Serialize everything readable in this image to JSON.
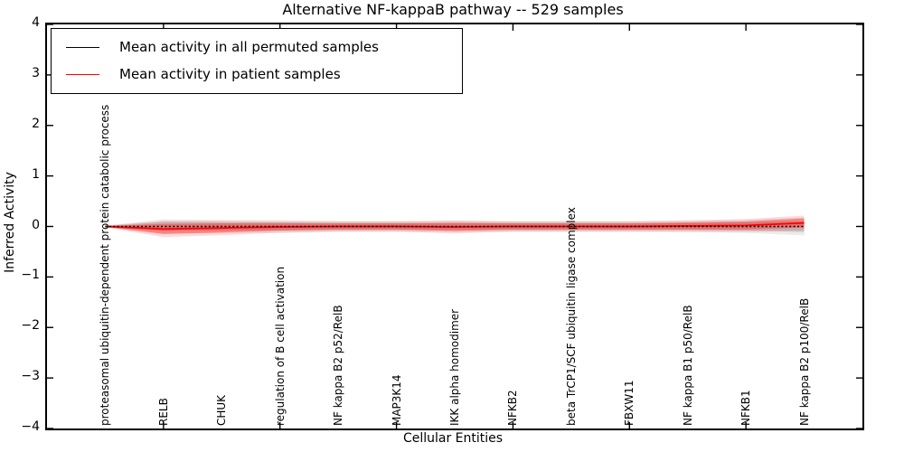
{
  "chart": {
    "title": "Alternative NF-kappaB pathway -- 529 samples",
    "xlabel": "Cellular Entities",
    "ylabel": "Inferred Activity"
  },
  "chart_data": {
    "type": "line",
    "title": "Alternative NF-kappaB pathway -- 529 samples",
    "xlabel": "Cellular Entities",
    "ylabel": "Inferred Activity",
    "ylim": [
      -4,
      4
    ],
    "xlim": [
      0,
      14
    ],
    "grid": false,
    "legend_position": "upper left",
    "yticks": [
      "4",
      "3",
      "2",
      "1",
      "0",
      "−1",
      "−2",
      "−3",
      "−4"
    ],
    "ytick_values": [
      4,
      3,
      2,
      1,
      0,
      -1,
      -2,
      -3,
      -4
    ],
    "xtick_values": [
      2,
      4,
      6,
      8,
      10,
      12
    ],
    "x": [
      1,
      2,
      3,
      4,
      5,
      6,
      7,
      8,
      9,
      10,
      11,
      12,
      13
    ],
    "categories": [
      "proteasomal ubiquitin-dependent protein catabolic process",
      "RELB",
      "CHUK",
      "regulation of B cell activation",
      "NF kappa B2 p52/RelB",
      "MAP3K14",
      "IKK alpha homodimer",
      "NFKB2",
      "beta TrCP1/SCF ubiquitin ligase complex",
      "FBXW11",
      "NF kappa B1 p50/RelB",
      "NFKB1",
      "NF kappa B2 p100/RelB"
    ],
    "series": [
      {
        "name": "Mean activity in all permuted samples",
        "color": "#000000",
        "style": "dotted",
        "values": [
          0.0,
          0.0,
          0.0,
          0.0,
          0.0,
          0.0,
          0.0,
          0.0,
          0.0,
          0.0,
          0.0,
          0.0,
          0.0
        ],
        "band": [
          0.01,
          0.09,
          0.08,
          0.08,
          0.07,
          0.07,
          0.07,
          0.07,
          0.07,
          0.07,
          0.07,
          0.08,
          0.11
        ]
      },
      {
        "name": "Mean activity in patient samples",
        "color": "#ff0000",
        "style": "solid",
        "values": [
          0.0,
          -0.05,
          -0.03,
          -0.01,
          0.0,
          0.0,
          -0.01,
          0.0,
          0.0,
          0.0,
          0.01,
          0.02,
          0.07
        ],
        "band": [
          0.01,
          0.1,
          0.09,
          0.07,
          0.06,
          0.06,
          0.08,
          0.06,
          0.06,
          0.06,
          0.07,
          0.08,
          0.09
        ]
      }
    ]
  }
}
